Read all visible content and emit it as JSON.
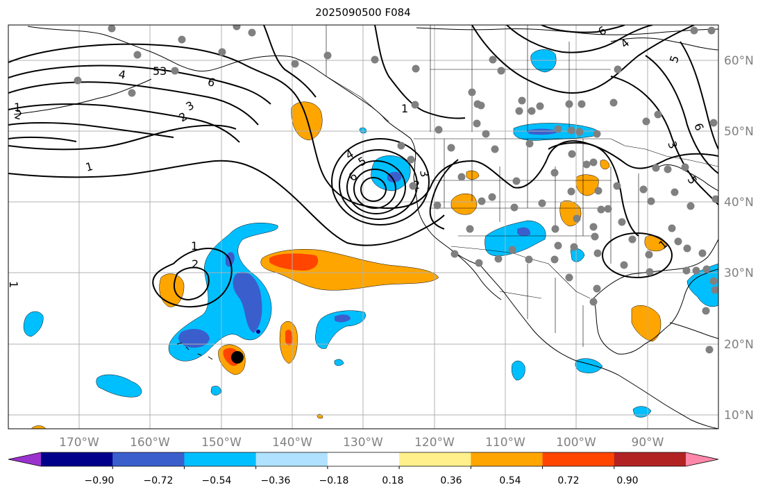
{
  "title": "2025090500 F084",
  "longitude_labels": [
    "170°W",
    "160°W",
    "150°W",
    "140°W",
    "130°W",
    "120°W",
    "110°W",
    "100°W",
    "90°W"
  ],
  "latitude_labels": [
    "60°N",
    "50°N",
    "40°N",
    "30°N",
    "20°N",
    "10°N"
  ],
  "colorbar": {
    "tick_labels": [
      "−0.90",
      "−0.72",
      "−0.54",
      "−0.36",
      "−0.18",
      "0.18",
      "0.36",
      "0.54",
      "0.72",
      "0.90"
    ],
    "colors": [
      "#9a32cd",
      "#00008b",
      "#3a5fcd",
      "#00bfff",
      "#b0e2ff",
      "#ffffff",
      "#fff08b",
      "#ffa500",
      "#ff4500",
      "#b22222",
      "#ff88aa"
    ]
  },
  "contour_labels": [
    "1",
    "2",
    "3",
    "4",
    "5",
    "6",
    "1",
    "2",
    "3",
    "4",
    "5",
    "6",
    "1",
    "2",
    "3",
    "4",
    "5",
    "6",
    "1",
    "2",
    "1",
    "5",
    "6",
    "3",
    "1"
  ],
  "colors": {
    "coast": "#000000",
    "grid": "#b0b0b0",
    "station_dot": "#808080",
    "storm_marker": "#000000",
    "axis_label": "#808080"
  }
}
